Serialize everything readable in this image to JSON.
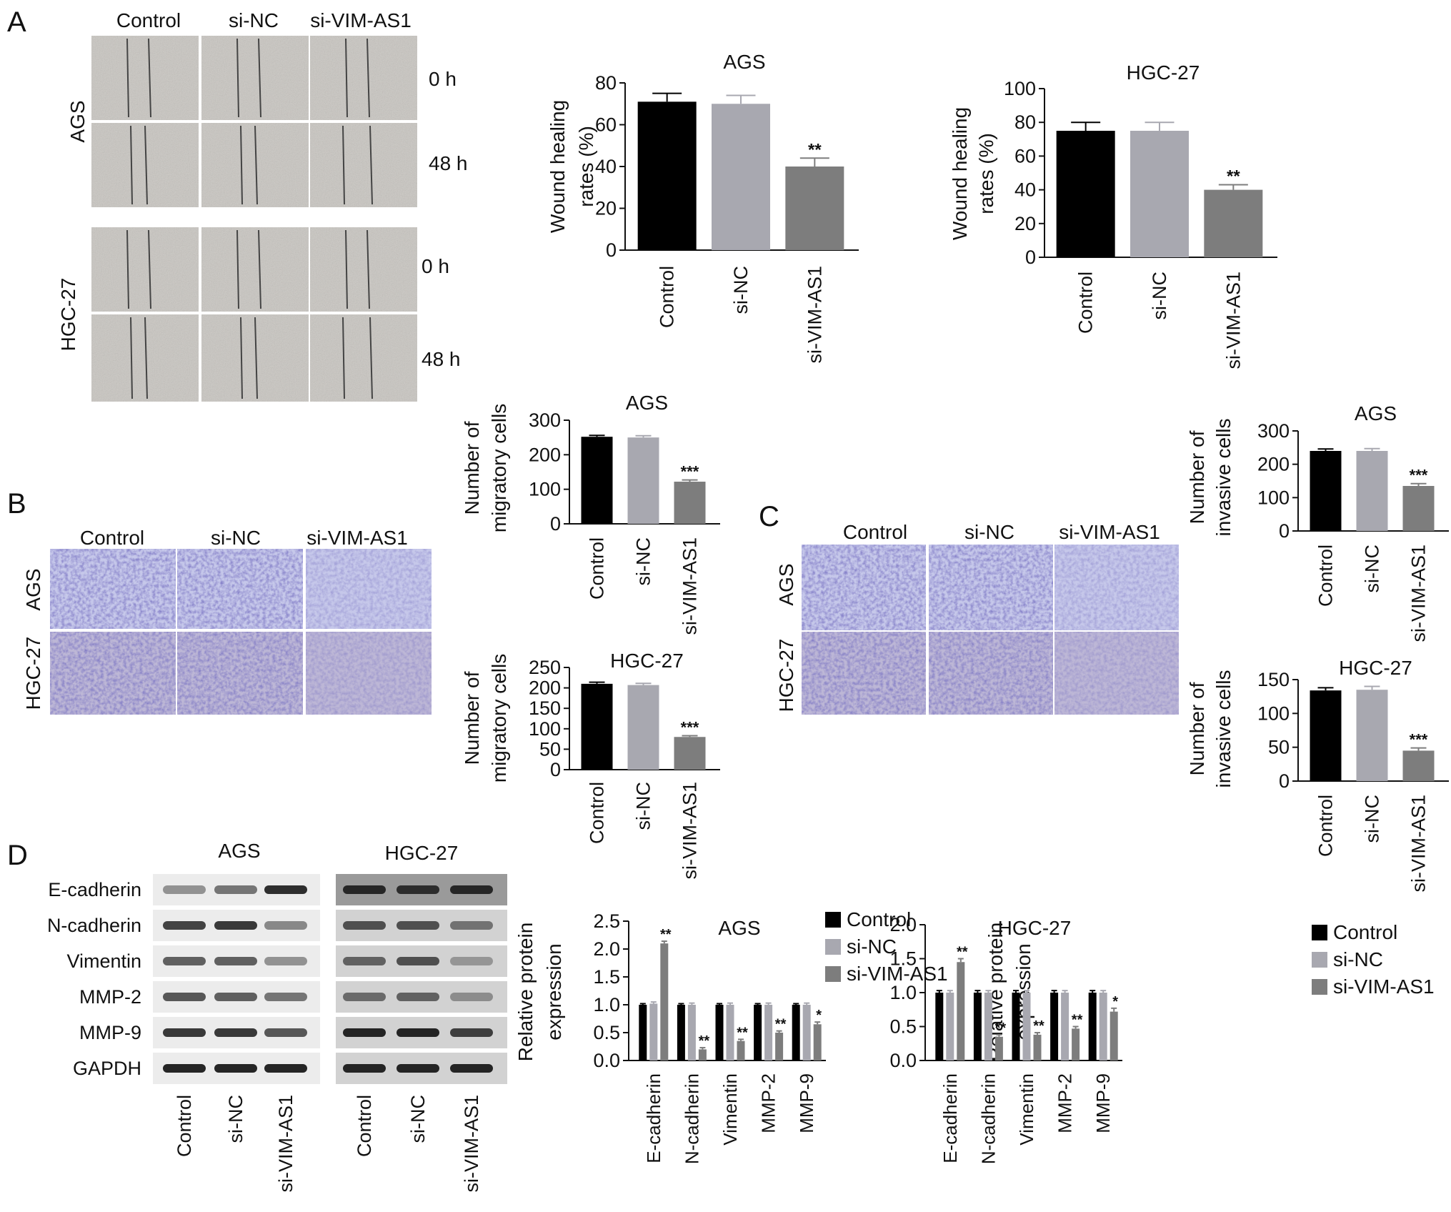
{
  "panel_letters": [
    "A",
    "B",
    "C",
    "D"
  ],
  "wound": {
    "columns": [
      "Control",
      "si-NC",
      "si-VIM-AS1"
    ],
    "row_groups": [
      "AGS",
      "HGC-27"
    ],
    "times": [
      "0 h",
      "48 h",
      "0 h",
      "48 h"
    ]
  },
  "transwell_b": {
    "columns": [
      "Control",
      "si-NC",
      "si-VIM-AS1"
    ],
    "rows": [
      "AGS",
      "HGC-27"
    ]
  },
  "transwell_c": {
    "columns": [
      "Control",
      "si-NC",
      "si-VIM-AS1"
    ],
    "rows": [
      "AGS",
      "HGC-27"
    ]
  },
  "western": {
    "groups": [
      "AGS",
      "HGC-27"
    ],
    "proteins": [
      "E-cadherin",
      "N-cadherin",
      "Vimentin",
      "MMP-2",
      "MMP-9",
      "GAPDH"
    ],
    "lanes": [
      "Control",
      "si-NC",
      "si-VIM-AS1"
    ]
  },
  "chart_data": [
    {
      "id": "a-ags",
      "type": "bar",
      "title": "AGS",
      "ylabel": [
        "Wound healing",
        "rates (%)"
      ],
      "categories": [
        "Control",
        "si-NC",
        "si-VIM-AS1"
      ],
      "values": [
        71,
        70,
        40
      ],
      "errors": [
        4,
        4,
        4
      ],
      "ylim": [
        0,
        80
      ],
      "yticks": [
        0,
        20,
        40,
        60,
        80
      ],
      "significance": [
        "",
        "",
        "**"
      ],
      "colors": [
        "#000000",
        "#a8a8b0",
        "#7d7d7d"
      ]
    },
    {
      "id": "a-hgc",
      "type": "bar",
      "title": "HGC-27",
      "ylabel": [
        "Wound healing",
        "rates (%)"
      ],
      "categories": [
        "Control",
        "si-NC",
        "si-VIM-AS1"
      ],
      "values": [
        75,
        75,
        40
      ],
      "errors": [
        5,
        5,
        3
      ],
      "ylim": [
        0,
        100
      ],
      "yticks": [
        0,
        20,
        40,
        60,
        80,
        100
      ],
      "significance": [
        "",
        "",
        "**"
      ],
      "colors": [
        "#000000",
        "#a8a8b0",
        "#7d7d7d"
      ]
    },
    {
      "id": "b-ags",
      "type": "bar",
      "title": "AGS",
      "ylabel": [
        "Number of",
        "migratory cells"
      ],
      "categories": [
        "Control",
        "si-NC",
        "si-VIM-AS1"
      ],
      "values": [
        252,
        250,
        122
      ],
      "errors": [
        4,
        5,
        5
      ],
      "ylim": [
        0,
        300
      ],
      "yticks": [
        0,
        100,
        200,
        300
      ],
      "significance": [
        "",
        "",
        "***"
      ],
      "colors": [
        "#000000",
        "#a8a8b0",
        "#7d7d7d"
      ]
    },
    {
      "id": "b-hgc",
      "type": "bar",
      "title": "HGC-27",
      "ylabel": [
        "Number of",
        "migratory cells"
      ],
      "categories": [
        "Control",
        "si-NC",
        "si-VIM-AS1"
      ],
      "values": [
        210,
        207,
        80
      ],
      "errors": [
        4,
        4,
        3
      ],
      "ylim": [
        0,
        250
      ],
      "yticks": [
        0,
        50,
        100,
        150,
        200,
        250
      ],
      "significance": [
        "",
        "",
        "***"
      ],
      "colors": [
        "#000000",
        "#a8a8b0",
        "#7d7d7d"
      ]
    },
    {
      "id": "c-ags",
      "type": "bar",
      "title": "AGS",
      "ylabel": [
        "Number of",
        "invasive cells"
      ],
      "categories": [
        "Control",
        "si-NC",
        "si-VIM-AS1"
      ],
      "values": [
        240,
        240,
        135
      ],
      "errors": [
        6,
        7,
        7
      ],
      "ylim": [
        0,
        300
      ],
      "yticks": [
        0,
        100,
        200,
        300
      ],
      "significance": [
        "",
        "",
        "***"
      ],
      "colors": [
        "#000000",
        "#a8a8b0",
        "#7d7d7d"
      ]
    },
    {
      "id": "c-hgc",
      "type": "bar",
      "title": "HGC-27",
      "ylabel": [
        "Number of",
        "invasive cells"
      ],
      "categories": [
        "Control",
        "si-NC",
        "si-VIM-AS1"
      ],
      "values": [
        134,
        135,
        45
      ],
      "errors": [
        4,
        5,
        4
      ],
      "ylim": [
        0,
        150
      ],
      "yticks": [
        0,
        50,
        100,
        150
      ],
      "significance": [
        "",
        "",
        "***"
      ],
      "colors": [
        "#000000",
        "#a8a8b0",
        "#7d7d7d"
      ]
    },
    {
      "id": "d-ags",
      "type": "bar",
      "title": "AGS",
      "ylabel": [
        "Relative protein",
        "expression"
      ],
      "categories": [
        "E-cadherin",
        "N-cadherin",
        "Vimentin",
        "MMP-2",
        "MMP-9"
      ],
      "series": [
        {
          "name": "Control",
          "values": [
            1.0,
            1.0,
            1.0,
            1.0,
            1.0
          ],
          "errors": [
            0.02,
            0.02,
            0.02,
            0.02,
            0.02
          ]
        },
        {
          "name": "si-NC",
          "values": [
            1.02,
            1.0,
            1.0,
            1.0,
            1.0
          ],
          "errors": [
            0.03,
            0.03,
            0.03,
            0.03,
            0.03
          ]
        },
        {
          "name": "si-VIM-AS1",
          "values": [
            2.1,
            0.2,
            0.35,
            0.5,
            0.65
          ],
          "errors": [
            0.04,
            0.03,
            0.03,
            0.03,
            0.04
          ]
        }
      ],
      "significance": [
        "**",
        "**",
        "**",
        "**",
        "*"
      ],
      "ylim": [
        0,
        2.5
      ],
      "yticks": [
        "0.0",
        "0.5",
        "1.0",
        "1.5",
        "2.0",
        "2.5"
      ],
      "legend": "right",
      "colors": [
        "#000000",
        "#a8a8b0",
        "#7d7d7d"
      ]
    },
    {
      "id": "d-hgc",
      "type": "bar",
      "title": "HGC-27",
      "ylabel": [
        "Relative protein",
        "expression"
      ],
      "categories": [
        "E-cadherin",
        "N-cadherin",
        "Vimentin",
        "MMP-2",
        "MMP-9"
      ],
      "series": [
        {
          "name": "Control",
          "values": [
            1.0,
            1.0,
            1.0,
            1.0,
            1.0
          ],
          "errors": [
            0.03,
            0.03,
            0.03,
            0.03,
            0.03
          ]
        },
        {
          "name": "si-NC",
          "values": [
            1.0,
            1.0,
            1.0,
            1.0,
            1.0
          ],
          "errors": [
            0.03,
            0.03,
            0.03,
            0.03,
            0.03
          ]
        },
        {
          "name": "si-VIM-AS1",
          "values": [
            1.45,
            0.35,
            0.38,
            0.47,
            0.72
          ],
          "errors": [
            0.05,
            0.03,
            0.03,
            0.03,
            0.05
          ]
        }
      ],
      "significance": [
        "**",
        "**",
        "**",
        "**",
        "*"
      ],
      "ylim": [
        0,
        2.0
      ],
      "yticks": [
        "0.0",
        "0.5",
        "1.0",
        "1.5",
        "2.0"
      ],
      "legend": "right",
      "colors": [
        "#000000",
        "#a8a8b0",
        "#7d7d7d"
      ]
    }
  ]
}
